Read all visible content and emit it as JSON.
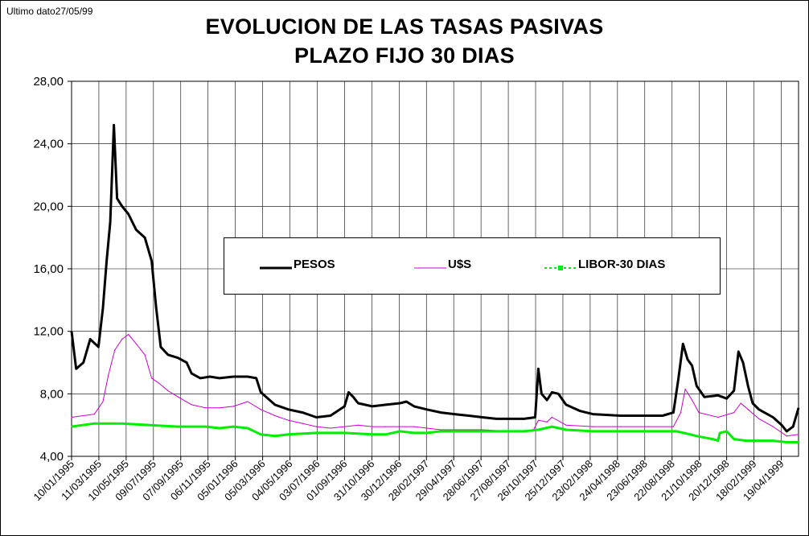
{
  "note": "Ultimo dato27/05/99",
  "chart_data": {
    "type": "line",
    "title": "EVOLUCION DE LAS TASAS PASIVAS",
    "subtitle": "PLAZO FIJO 30 DIAS",
    "ylim": [
      4,
      28
    ],
    "yticks": [
      "4,00",
      "8,00",
      "12,00",
      "16,00",
      "20,00",
      "24,00",
      "28,00"
    ],
    "x_start": "10/01/1995",
    "x_end": "27/05/1999",
    "x_ticks": [
      "10/01/1995",
      "11/03/1995",
      "10/05/1995",
      "09/07/1995",
      "07/09/1995",
      "06/11/1995",
      "05/01/1996",
      "05/03/1996",
      "04/05/1996",
      "03/07/1996",
      "01/09/1996",
      "31/10/1996",
      "30/12/1996",
      "28/02/1997",
      "29/04/1997",
      "28/06/1997",
      "27/08/1997",
      "26/10/1997",
      "25/12/1997",
      "23/02/1998",
      "24/04/1998",
      "23/06/1998",
      "22/08/1998",
      "21/10/1998",
      "20/12/1998",
      "18/02/1999",
      "19/04/1999"
    ],
    "grid": true,
    "legend_position": "center",
    "series": [
      {
        "name": "PESOS",
        "color": "#000000",
        "points": [
          [
            "10/01/1995",
            12.0
          ],
          [
            "20/01/1995",
            9.6
          ],
          [
            "05/02/1995",
            10.0
          ],
          [
            "20/02/1995",
            11.5
          ],
          [
            "10/03/1995",
            11.0
          ],
          [
            "20/03/1995",
            13.5
          ],
          [
            "28/03/1995",
            16.5
          ],
          [
            "05/04/1995",
            19.0
          ],
          [
            "13/04/1995",
            25.2
          ],
          [
            "20/04/1995",
            20.5
          ],
          [
            "01/05/1995",
            20.0
          ],
          [
            "15/05/1995",
            19.5
          ],
          [
            "01/06/1995",
            18.5
          ],
          [
            "20/06/1995",
            18.0
          ],
          [
            "05/07/1995",
            16.5
          ],
          [
            "15/07/1995",
            13.5
          ],
          [
            "25/07/1995",
            11.0
          ],
          [
            "10/08/1995",
            10.5
          ],
          [
            "01/09/1995",
            10.3
          ],
          [
            "20/09/1995",
            10.0
          ],
          [
            "01/10/1995",
            9.3
          ],
          [
            "20/10/1995",
            9.0
          ],
          [
            "10/11/1995",
            9.1
          ],
          [
            "01/12/1995",
            9.0
          ],
          [
            "01/01/1996",
            9.1
          ],
          [
            "01/02/1996",
            9.1
          ],
          [
            "20/02/1996",
            9.0
          ],
          [
            "01/03/1996",
            8.1
          ],
          [
            "01/04/1996",
            7.3
          ],
          [
            "01/05/1996",
            7.0
          ],
          [
            "01/06/1996",
            6.8
          ],
          [
            "01/07/1996",
            6.5
          ],
          [
            "01/08/1996",
            6.6
          ],
          [
            "01/09/1996",
            7.2
          ],
          [
            "10/09/1996",
            8.1
          ],
          [
            "20/09/1996",
            7.8
          ],
          [
            "01/10/1996",
            7.4
          ],
          [
            "01/11/1996",
            7.2
          ],
          [
            "01/12/1996",
            7.3
          ],
          [
            "01/01/1997",
            7.4
          ],
          [
            "15/01/1997",
            7.5
          ],
          [
            "01/02/1997",
            7.2
          ],
          [
            "01/03/1997",
            7.0
          ],
          [
            "01/04/1997",
            6.8
          ],
          [
            "01/05/1997",
            6.7
          ],
          [
            "01/06/1997",
            6.6
          ],
          [
            "01/07/1997",
            6.5
          ],
          [
            "01/08/1997",
            6.4
          ],
          [
            "01/09/1997",
            6.4
          ],
          [
            "01/10/1997",
            6.4
          ],
          [
            "25/10/1997",
            6.5
          ],
          [
            "01/11/1997",
            9.6
          ],
          [
            "08/11/1997",
            8.0
          ],
          [
            "20/11/1997",
            7.6
          ],
          [
            "01/12/1997",
            8.1
          ],
          [
            "15/12/1997",
            8.0
          ],
          [
            "01/01/1998",
            7.3
          ],
          [
            "01/02/1998",
            6.9
          ],
          [
            "01/03/1998",
            6.7
          ],
          [
            "01/05/1998",
            6.6
          ],
          [
            "01/07/1998",
            6.6
          ],
          [
            "01/08/1998",
            6.6
          ],
          [
            "25/08/1998",
            6.8
          ],
          [
            "05/09/1998",
            9.0
          ],
          [
            "15/09/1998",
            11.2
          ],
          [
            "25/09/1998",
            10.2
          ],
          [
            "05/10/1998",
            9.8
          ],
          [
            "15/10/1998",
            8.5
          ],
          [
            "01/11/1998",
            7.8
          ],
          [
            "01/12/1998",
            7.9
          ],
          [
            "20/12/1998",
            7.7
          ],
          [
            "05/01/1999",
            8.2
          ],
          [
            "15/01/1999",
            10.7
          ],
          [
            "25/01/1999",
            10.0
          ],
          [
            "05/02/1999",
            8.5
          ],
          [
            "15/02/1999",
            7.4
          ],
          [
            "01/03/1999",
            7.0
          ],
          [
            "01/04/1999",
            6.5
          ],
          [
            "20/04/1999",
            6.0
          ],
          [
            "01/05/1999",
            5.6
          ],
          [
            "15/05/1999",
            5.9
          ],
          [
            "27/05/1999",
            7.1
          ]
        ]
      },
      {
        "name": "U$S",
        "color": "#cc00cc",
        "points": [
          [
            "10/01/1995",
            6.5
          ],
          [
            "01/03/1995",
            6.7
          ],
          [
            "20/03/1995",
            7.5
          ],
          [
            "01/04/1995",
            9.2
          ],
          [
            "15/04/1995",
            10.8
          ],
          [
            "01/05/1995",
            11.5
          ],
          [
            "15/05/1995",
            11.8
          ],
          [
            "01/06/1995",
            11.2
          ],
          [
            "20/06/1995",
            10.5
          ],
          [
            "05/07/1995",
            9.0
          ],
          [
            "20/07/1995",
            8.7
          ],
          [
            "10/08/1995",
            8.2
          ],
          [
            "01/09/1995",
            7.8
          ],
          [
            "01/10/1995",
            7.3
          ],
          [
            "01/11/1995",
            7.1
          ],
          [
            "01/12/1995",
            7.1
          ],
          [
            "01/01/1996",
            7.2
          ],
          [
            "01/02/1996",
            7.5
          ],
          [
            "01/03/1996",
            7.0
          ],
          [
            "01/04/1996",
            6.6
          ],
          [
            "01/05/1996",
            6.3
          ],
          [
            "01/06/1996",
            6.1
          ],
          [
            "01/07/1996",
            5.9
          ],
          [
            "01/08/1996",
            5.8
          ],
          [
            "01/09/1996",
            5.9
          ],
          [
            "01/10/1996",
            6.0
          ],
          [
            "01/11/1996",
            5.9
          ],
          [
            "01/12/1996",
            5.9
          ],
          [
            "01/01/1997",
            5.9
          ],
          [
            "01/02/1997",
            5.9
          ],
          [
            "01/03/1997",
            5.8
          ],
          [
            "01/04/1997",
            5.7
          ],
          [
            "01/05/1997",
            5.7
          ],
          [
            "01/07/1997",
            5.7
          ],
          [
            "01/09/1997",
            5.6
          ],
          [
            "20/10/1997",
            5.6
          ],
          [
            "01/11/1997",
            6.3
          ],
          [
            "20/11/1997",
            6.2
          ],
          [
            "01/12/1997",
            6.5
          ],
          [
            "01/01/1998",
            6.0
          ],
          [
            "01/03/1998",
            5.9
          ],
          [
            "01/05/1998",
            5.9
          ],
          [
            "01/07/1998",
            5.9
          ],
          [
            "25/08/1998",
            5.9
          ],
          [
            "10/09/1998",
            6.8
          ],
          [
            "20/09/1998",
            8.3
          ],
          [
            "05/10/1998",
            7.6
          ],
          [
            "20/10/1998",
            6.8
          ],
          [
            "01/12/1998",
            6.5
          ],
          [
            "05/01/1999",
            6.8
          ],
          [
            "20/01/1999",
            7.4
          ],
          [
            "05/02/1999",
            7.0
          ],
          [
            "01/03/1999",
            6.4
          ],
          [
            "01/04/1999",
            5.9
          ],
          [
            "01/05/1999",
            5.3
          ],
          [
            "27/05/1999",
            5.4
          ]
        ]
      },
      {
        "name": "LIBOR-30 DIAS",
        "color": "#00ee00",
        "points": [
          [
            "10/01/1995",
            5.9
          ],
          [
            "01/03/1995",
            6.1
          ],
          [
            "01/05/1995",
            6.1
          ],
          [
            "01/07/1995",
            6.0
          ],
          [
            "01/09/1995",
            5.9
          ],
          [
            "01/11/1995",
            5.9
          ],
          [
            "01/12/1995",
            5.8
          ],
          [
            "01/01/1996",
            5.9
          ],
          [
            "01/02/1996",
            5.8
          ],
          [
            "01/03/1996",
            5.4
          ],
          [
            "01/04/1996",
            5.3
          ],
          [
            "01/05/1996",
            5.4
          ],
          [
            "01/07/1996",
            5.5
          ],
          [
            "01/09/1996",
            5.5
          ],
          [
            "01/11/1996",
            5.4
          ],
          [
            "01/12/1996",
            5.4
          ],
          [
            "01/01/1997",
            5.6
          ],
          [
            "01/02/1997",
            5.5
          ],
          [
            "01/03/1997",
            5.5
          ],
          [
            "01/04/1997",
            5.6
          ],
          [
            "01/06/1997",
            5.6
          ],
          [
            "01/08/1997",
            5.6
          ],
          [
            "01/10/1997",
            5.6
          ],
          [
            "01/11/1997",
            5.7
          ],
          [
            "01/12/1997",
            5.9
          ],
          [
            "01/01/1998",
            5.7
          ],
          [
            "01/03/1998",
            5.6
          ],
          [
            "01/05/1998",
            5.6
          ],
          [
            "01/07/1998",
            5.6
          ],
          [
            "01/09/1998",
            5.6
          ],
          [
            "01/10/1998",
            5.4
          ],
          [
            "15/10/1998",
            5.3
          ],
          [
            "01/11/1998",
            5.2
          ],
          [
            "20/11/1998",
            5.1
          ],
          [
            "01/12/1998",
            5.0
          ],
          [
            "05/12/1998",
            5.5
          ],
          [
            "20/12/1998",
            5.6
          ],
          [
            "05/01/1999",
            5.1
          ],
          [
            "01/02/1999",
            5.0
          ],
          [
            "01/03/1999",
            5.0
          ],
          [
            "01/04/1999",
            5.0
          ],
          [
            "01/05/1999",
            4.9
          ],
          [
            "27/05/1999",
            4.9
          ]
        ]
      }
    ]
  }
}
